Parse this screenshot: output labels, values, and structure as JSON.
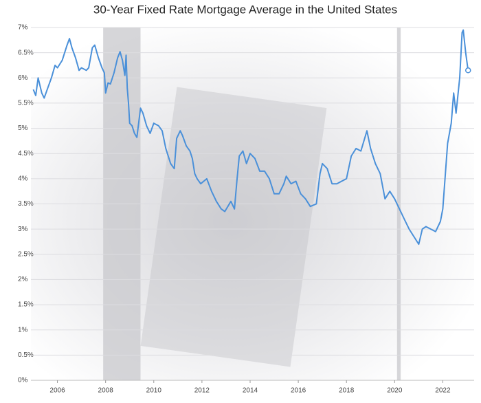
{
  "chart_data": {
    "type": "line",
    "title": "30-Year Fixed Rate Mortgage Average in the United States",
    "xlim": [
      2004.9,
      2023.3
    ],
    "xticks": [
      2006,
      2008,
      2010,
      2012,
      2014,
      2016,
      2018,
      2020,
      2022
    ],
    "ylim": [
      0,
      7
    ],
    "yticks": [
      {
        "value": 0,
        "label": "0%"
      },
      {
        "value": 0.5,
        "label": "0.5%"
      },
      {
        "value": 1,
        "label": "1%"
      },
      {
        "value": 1.5,
        "label": "1.5%"
      },
      {
        "value": 2,
        "label": "2%"
      },
      {
        "value": 2.5,
        "label": "2.5%"
      },
      {
        "value": 3,
        "label": "3%"
      },
      {
        "value": 3.5,
        "label": "3.5%"
      },
      {
        "value": 4,
        "label": "4%"
      },
      {
        "value": 4.5,
        "label": "4.5%"
      },
      {
        "value": 5,
        "label": "5%"
      },
      {
        "value": 5.5,
        "label": "5.5%"
      },
      {
        "value": 6,
        "label": "6%"
      },
      {
        "value": 6.5,
        "label": "6.5%"
      },
      {
        "value": 7,
        "label": "7%"
      }
    ],
    "grid": true,
    "shaded_periods": [
      [
        2007.9,
        2009.45
      ],
      [
        2020.1,
        2020.25
      ]
    ],
    "shade_color": "#c8c8cc",
    "x": [
      2005.0,
      2005.1,
      2005.2,
      2005.35,
      2005.45,
      2005.6,
      2005.75,
      2005.9,
      2006.0,
      2006.2,
      2006.4,
      2006.5,
      2006.6,
      2006.75,
      2006.9,
      2007.0,
      2007.2,
      2007.3,
      2007.45,
      2007.55,
      2007.7,
      2007.85,
      2007.95,
      2008.0,
      2008.1,
      2008.2,
      2008.35,
      2008.5,
      2008.6,
      2008.7,
      2008.8,
      2008.85,
      2008.9,
      2008.95,
      2009.0,
      2009.1,
      2009.2,
      2009.3,
      2009.45,
      2009.55,
      2009.7,
      2009.85,
      2010.0,
      2010.2,
      2010.35,
      2010.5,
      2010.7,
      2010.85,
      2010.95,
      2011.1,
      2011.2,
      2011.35,
      2011.5,
      2011.6,
      2011.7,
      2011.8,
      2011.95,
      2012.2,
      2012.4,
      2012.6,
      2012.8,
      2012.95,
      2013.2,
      2013.35,
      2013.45,
      2013.55,
      2013.7,
      2013.85,
      2014.0,
      2014.2,
      2014.4,
      2014.6,
      2014.8,
      2015.0,
      2015.2,
      2015.4,
      2015.5,
      2015.7,
      2015.9,
      2016.1,
      2016.3,
      2016.5,
      2016.75,
      2016.9,
      2017.0,
      2017.2,
      2017.4,
      2017.6,
      2017.8,
      2018.0,
      2018.2,
      2018.4,
      2018.6,
      2018.85,
      2019.0,
      2019.2,
      2019.4,
      2019.6,
      2019.8,
      2020.0,
      2020.2,
      2020.4,
      2020.6,
      2020.8,
      2021.0,
      2021.15,
      2021.3,
      2021.5,
      2021.7,
      2021.9,
      2022.0,
      2022.2,
      2022.35,
      2022.45,
      2022.55,
      2022.7,
      2022.8,
      2022.85,
      2022.95,
      2023.05
    ],
    "series": [
      {
        "color": "#4a90d9",
        "values": [
          5.77,
          5.65,
          6.0,
          5.7,
          5.6,
          5.8,
          6.0,
          6.25,
          6.2,
          6.35,
          6.65,
          6.78,
          6.6,
          6.4,
          6.15,
          6.2,
          6.15,
          6.2,
          6.6,
          6.65,
          6.4,
          6.2,
          6.1,
          5.7,
          5.9,
          5.88,
          6.1,
          6.4,
          6.52,
          6.35,
          6.05,
          6.45,
          5.8,
          5.5,
          5.1,
          5.05,
          4.9,
          4.82,
          5.4,
          5.3,
          5.05,
          4.9,
          5.1,
          5.05,
          4.95,
          4.6,
          4.3,
          4.2,
          4.8,
          4.95,
          4.85,
          4.65,
          4.55,
          4.4,
          4.1,
          4.0,
          3.9,
          4.0,
          3.75,
          3.55,
          3.4,
          3.35,
          3.55,
          3.4,
          3.95,
          4.45,
          4.55,
          4.3,
          4.5,
          4.4,
          4.15,
          4.15,
          4.0,
          3.7,
          3.7,
          3.9,
          4.05,
          3.9,
          3.95,
          3.7,
          3.6,
          3.45,
          3.5,
          4.1,
          4.3,
          4.2,
          3.9,
          3.9,
          3.95,
          4.0,
          4.45,
          4.6,
          4.55,
          4.95,
          4.6,
          4.3,
          4.1,
          3.6,
          3.75,
          3.6,
          3.4,
          3.2,
          3.0,
          2.85,
          2.7,
          3.0,
          3.05,
          3.0,
          2.95,
          3.15,
          3.4,
          4.7,
          5.1,
          5.7,
          5.3,
          6.0,
          6.9,
          6.95,
          6.5,
          6.15
        ]
      }
    ]
  }
}
